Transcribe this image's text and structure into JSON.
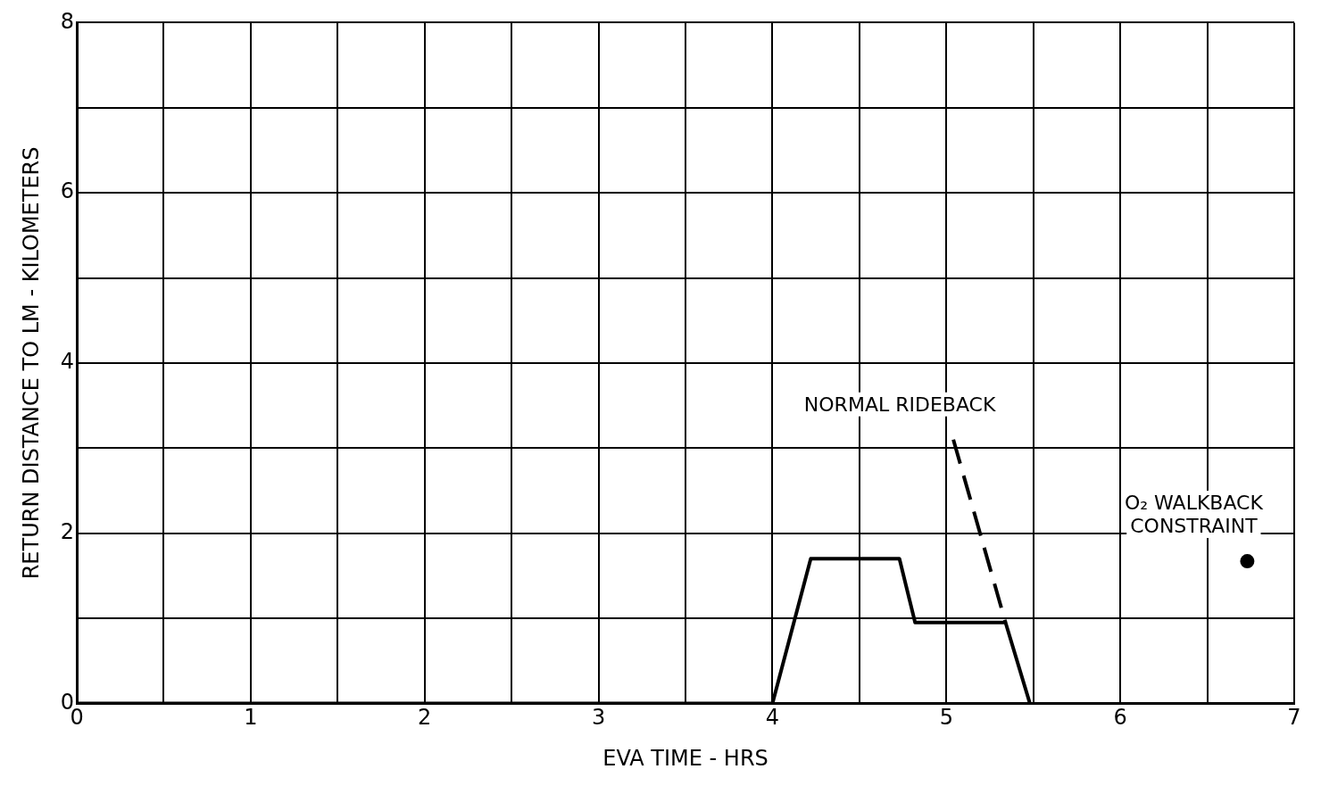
{
  "chart_data": {
    "type": "line",
    "xlabel": "EVA TIME - HRS",
    "ylabel": "RETURN DISTANCE TO LM - KILOMETERS",
    "xlim": [
      0,
      7
    ],
    "ylim": [
      0,
      8
    ],
    "xticks": [
      0,
      {
        "value": 0.5,
        "label": null
      },
      1,
      {
        "value": 1.5,
        "label": null
      },
      2,
      {
        "value": 2.5,
        "label": null
      },
      3,
      {
        "value": 3.5,
        "label": null
      },
      4,
      {
        "value": 4.5,
        "label": null
      },
      5,
      {
        "value": 5.5,
        "label": null
      },
      6,
      {
        "value": 6.5,
        "label": null
      },
      7
    ],
    "yticks": [
      0,
      {
        "value": 1,
        "label": null
      },
      2,
      {
        "value": 3,
        "label": null
      },
      4,
      {
        "value": 5,
        "label": null
      },
      6,
      {
        "value": 7,
        "label": null
      },
      8
    ],
    "grid": true,
    "legend": false,
    "series": [
      {
        "color": "#000000",
        "line_style": "solid",
        "marker": "none",
        "x": [
          0,
          4,
          4.22,
          4.73,
          4.82,
          5.34,
          5.48
        ],
        "values": [
          0,
          0,
          1.7,
          1.7,
          0.95,
          0.95,
          0
        ]
      },
      {
        "color": "#000000",
        "line_style": "dashed",
        "marker": "none",
        "x": [
          5.04,
          5.34
        ],
        "values": [
          3.1,
          0.95
        ]
      },
      {
        "type": "scatter",
        "color": "#000000",
        "marker": "circle",
        "x": [
          6.73
        ],
        "values": [
          1.67
        ]
      }
    ],
    "annotations": [
      {
        "text": "NORMAL RIDEBACK",
        "x": 5.04,
        "y": 3.1
      },
      {
        "text": "O₂ WALKBACK\nCONSTRAINT",
        "x": 6.73,
        "y": 1.67
      }
    ]
  }
}
